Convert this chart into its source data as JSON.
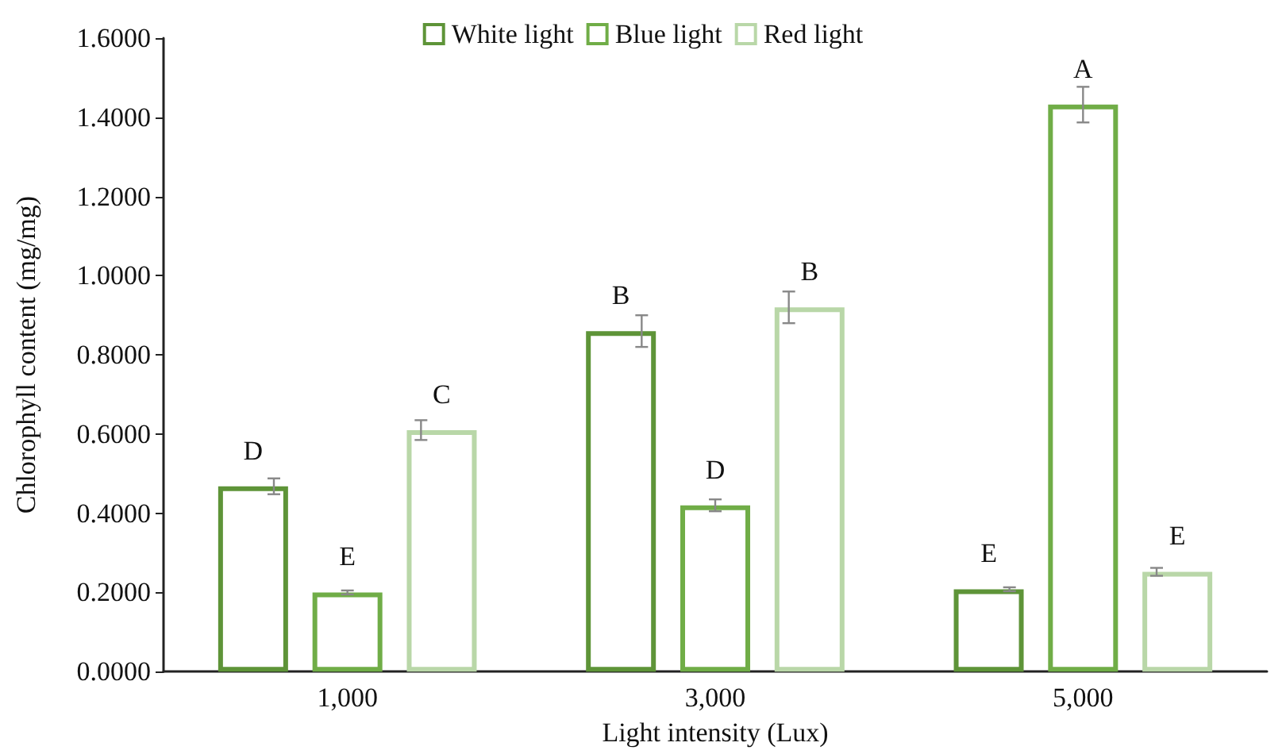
{
  "chart_data": {
    "type": "bar",
    "xlabel": "Light intensity (Lux)",
    "ylabel": "Chlorophyll content (mg/mg)",
    "categories": [
      "1,000",
      "3,000",
      "5,000"
    ],
    "series": [
      {
        "name": "White light",
        "color": "#5e9438",
        "values": [
          0.468,
          0.86,
          0.208
        ],
        "errors": [
          0.02,
          0.04,
          0.005
        ],
        "value_labels": [
          "D",
          "B",
          "E"
        ]
      },
      {
        "name": "Blue light",
        "color": "#70ad47",
        "values": [
          0.2,
          0.42,
          1.432
        ],
        "errors": [
          0.005,
          0.015,
          0.045
        ],
        "value_labels": [
          "E",
          "D",
          "A"
        ]
      },
      {
        "name": "Red light",
        "color": "#b9d7a8",
        "values": [
          0.61,
          0.92,
          0.252
        ],
        "errors": [
          0.025,
          0.04,
          0.01
        ],
        "value_labels": [
          "C",
          "B",
          "E"
        ]
      }
    ],
    "ylim": [
      0,
      1.6
    ],
    "yticks": [
      {
        "value": 0,
        "label": "0.0000"
      },
      {
        "value": 0.2,
        "label": "0.2000"
      },
      {
        "value": 0.4,
        "label": "0.4000"
      },
      {
        "value": 0.6,
        "label": "0.6000"
      },
      {
        "value": 0.8,
        "label": "0.8000"
      },
      {
        "value": 1,
        "label": "1.0000"
      },
      {
        "value": 1.2,
        "label": "1.2000"
      },
      {
        "value": 1.4,
        "label": "1.4000"
      },
      {
        "value": 1.6,
        "label": "1.6000"
      }
    ],
    "grid": false,
    "legend": "top"
  }
}
